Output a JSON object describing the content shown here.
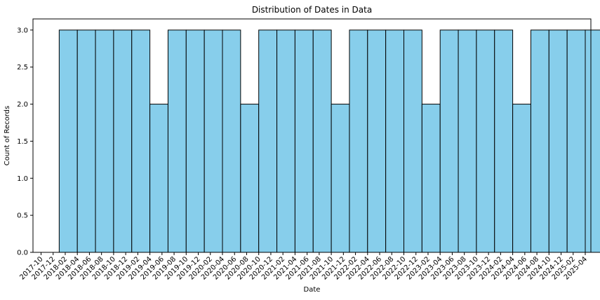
{
  "chart_data": {
    "type": "bar",
    "title": "Distribution of Dates in Data",
    "xlabel": "Date",
    "ylabel": "Count of Records",
    "ylim": [
      0,
      3.15
    ],
    "yticks": [
      "0.0",
      "0.5",
      "1.0",
      "1.5",
      "2.0",
      "2.5",
      "3.0"
    ],
    "xticks": [
      "2017-10",
      "2017-12",
      "2018-02",
      "2018-04",
      "2018-06",
      "2018-08",
      "2018-10",
      "2018-12",
      "2019-02",
      "2019-04",
      "2019-06",
      "2019-08",
      "2019-10",
      "2019-12",
      "2020-02",
      "2020-04",
      "2020-06",
      "2020-08",
      "2020-10",
      "2020-12",
      "2021-02",
      "2021-04",
      "2021-06",
      "2021-08",
      "2021-10",
      "2021-12",
      "2022-02",
      "2022-04",
      "2022-06",
      "2022-08",
      "2022-10",
      "2022-12",
      "2023-02",
      "2023-04",
      "2023-06",
      "2023-08",
      "2023-10",
      "2023-12",
      "2024-02",
      "2024-04",
      "2024-06",
      "2024-08",
      "2024-10",
      "2024-12",
      "2025-02",
      "2025-04"
    ],
    "bins": [
      {
        "start": "2018-01",
        "end": "2018-04",
        "value": 3
      },
      {
        "start": "2018-04",
        "end": "2018-07",
        "value": 3
      },
      {
        "start": "2018-07",
        "end": "2018-10",
        "value": 3
      },
      {
        "start": "2018-10",
        "end": "2019-01",
        "value": 3
      },
      {
        "start": "2019-01",
        "end": "2019-04",
        "value": 3
      },
      {
        "start": "2019-04",
        "end": "2019-07",
        "value": 2
      },
      {
        "start": "2019-07",
        "end": "2019-10",
        "value": 3
      },
      {
        "start": "2019-10",
        "end": "2020-01",
        "value": 3
      },
      {
        "start": "2020-01",
        "end": "2020-04",
        "value": 3
      },
      {
        "start": "2020-04",
        "end": "2020-07",
        "value": 3
      },
      {
        "start": "2020-07",
        "end": "2020-10",
        "value": 2
      },
      {
        "start": "2020-10",
        "end": "2021-01",
        "value": 3
      },
      {
        "start": "2021-01",
        "end": "2021-04",
        "value": 3
      },
      {
        "start": "2021-04",
        "end": "2021-07",
        "value": 3
      },
      {
        "start": "2021-07",
        "end": "2021-10",
        "value": 3
      },
      {
        "start": "2021-10",
        "end": "2022-01",
        "value": 2
      },
      {
        "start": "2022-01",
        "end": "2022-04",
        "value": 3
      },
      {
        "start": "2022-04",
        "end": "2022-07",
        "value": 3
      },
      {
        "start": "2022-07",
        "end": "2022-10",
        "value": 3
      },
      {
        "start": "2022-10",
        "end": "2023-01",
        "value": 3
      },
      {
        "start": "2023-01",
        "end": "2023-04",
        "value": 2
      },
      {
        "start": "2023-04",
        "end": "2023-07",
        "value": 3
      },
      {
        "start": "2023-07",
        "end": "2023-10",
        "value": 3
      },
      {
        "start": "2023-10",
        "end": "2024-01",
        "value": 3
      },
      {
        "start": "2024-01",
        "end": "2024-04",
        "value": 3
      },
      {
        "start": "2024-04",
        "end": "2024-07",
        "value": 2
      },
      {
        "start": "2024-07",
        "end": "2024-10",
        "value": 3
      },
      {
        "start": "2024-10",
        "end": "2025-01",
        "value": 3
      },
      {
        "start": "2025-01",
        "end": "2025-04",
        "value": 3
      },
      {
        "start": "2025-04",
        "end": "2025-07",
        "value": 3
      }
    ],
    "bar_color": "#87CEEB",
    "edge_color": "#000000",
    "grid": false,
    "legend": "none"
  }
}
